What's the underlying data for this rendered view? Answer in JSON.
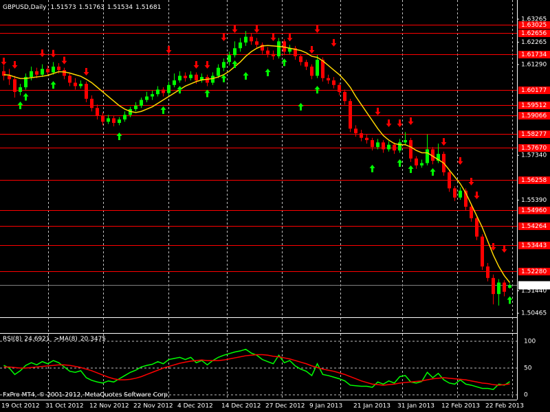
{
  "chart_data": [
    {
      "type": "candlestick",
      "title": "GBPUSD,Daily",
      "categories": [
        "19 Oct 2012",
        null,
        null,
        null,
        null,
        null,
        null,
        null,
        "31 Oct 2012",
        null,
        null,
        null,
        null,
        null,
        null,
        null,
        "12 Nov 2012",
        null,
        null,
        null,
        null,
        null,
        null,
        null,
        "22 Nov 2012",
        null,
        null,
        null,
        null,
        null,
        null,
        null,
        "4 Dec 2012",
        null,
        null,
        null,
        null,
        null,
        null,
        null,
        "14 Dec 2012",
        null,
        null,
        null,
        null,
        null,
        null,
        null,
        "27 Dec 2012",
        null,
        null,
        null,
        null,
        null,
        null,
        null,
        "9 Jan 2013",
        null,
        null,
        null,
        null,
        null,
        null,
        null,
        "21 Jan 2013",
        null,
        null,
        null,
        null,
        null,
        null,
        null,
        "31 Jan 2013",
        null,
        null,
        null,
        null,
        null,
        null,
        null,
        "12 Feb 2013",
        null,
        null,
        null,
        null,
        null,
        null,
        null,
        "22 Feb 2013",
        null,
        null,
        null,
        null
      ],
      "ohlc": [
        [
          1.61,
          1.6125,
          1.606,
          1.608
        ],
        [
          1.608,
          1.611,
          1.604,
          1.6065
        ],
        [
          1.6065,
          1.608,
          1.5985,
          1.601
        ],
        [
          1.601,
          1.6045,
          1.5995,
          1.603
        ],
        [
          1.603,
          1.609,
          1.602,
          1.6075
        ],
        [
          1.6075,
          1.612,
          1.606,
          1.61
        ],
        [
          1.61,
          1.6115,
          1.607,
          1.6085
        ],
        [
          1.6085,
          1.613,
          1.6075,
          1.611
        ],
        [
          1.611,
          1.6125,
          1.608,
          1.6095
        ],
        [
          1.6095,
          1.614,
          1.6085,
          1.612
        ],
        [
          1.612,
          1.6135,
          1.609,
          1.6105
        ],
        [
          1.6105,
          1.6115,
          1.6065,
          1.608
        ],
        [
          1.608,
          1.609,
          1.6035,
          1.605
        ],
        [
          1.605,
          1.607,
          1.602,
          1.6035
        ],
        [
          1.6035,
          1.606,
          1.6025,
          1.6045
        ],
        [
          1.6045,
          1.6055,
          1.5965,
          1.598
        ],
        [
          1.598,
          1.5995,
          1.5925,
          1.594
        ],
        [
          1.594,
          1.5955,
          1.589,
          1.5905
        ],
        [
          1.5905,
          1.592,
          1.5865,
          1.588
        ],
        [
          1.588,
          1.591,
          1.587,
          1.5895
        ],
        [
          1.5895,
          1.5905,
          1.586,
          1.5875
        ],
        [
          1.5875,
          1.59,
          1.5865,
          1.589
        ],
        [
          1.589,
          1.5925,
          1.588,
          1.591
        ],
        [
          1.591,
          1.5945,
          1.59,
          1.5935
        ],
        [
          1.5935,
          1.5965,
          1.5925,
          1.595
        ],
        [
          1.595,
          1.5985,
          1.594,
          1.5975
        ],
        [
          1.5975,
          1.601,
          1.5965,
          1.599
        ],
        [
          1.599,
          1.6015,
          1.5975,
          1.6
        ],
        [
          1.6,
          1.6035,
          1.599,
          1.602
        ],
        [
          1.602,
          1.603,
          1.599,
          1.6005
        ],
        [
          1.6005,
          1.6055,
          1.5995,
          1.604
        ],
        [
          1.604,
          1.609,
          1.603,
          1.606
        ],
        [
          1.606,
          1.61,
          1.605,
          1.608
        ],
        [
          1.608,
          1.6095,
          1.6055,
          1.607
        ],
        [
          1.607,
          1.61,
          1.606,
          1.6085
        ],
        [
          1.6085,
          1.6095,
          1.6045,
          1.606
        ],
        [
          1.606,
          1.609,
          1.605,
          1.6075
        ],
        [
          1.6075,
          1.6085,
          1.6035,
          1.605
        ],
        [
          1.605,
          1.6095,
          1.604,
          1.608
        ],
        [
          1.608,
          1.613,
          1.607,
          1.6115
        ],
        [
          1.6115,
          1.6155,
          1.61,
          1.614
        ],
        [
          1.614,
          1.6185,
          1.6125,
          1.617
        ],
        [
          1.617,
          1.623,
          1.616,
          1.62
        ],
        [
          1.62,
          1.6245,
          1.6185,
          1.6225
        ],
        [
          1.6225,
          1.6275,
          1.621,
          1.625
        ],
        [
          1.625,
          1.6265,
          1.6215,
          1.623
        ],
        [
          1.623,
          1.6245,
          1.62,
          1.6215
        ],
        [
          1.6215,
          1.6225,
          1.6175,
          1.619
        ],
        [
          1.619,
          1.6205,
          1.616,
          1.6175
        ],
        [
          1.6175,
          1.619,
          1.615,
          1.6165
        ],
        [
          1.6165,
          1.6245,
          1.6155,
          1.623
        ],
        [
          1.623,
          1.624,
          1.617,
          1.6185
        ],
        [
          1.6185,
          1.6215,
          1.6175,
          1.62
        ],
        [
          1.62,
          1.621,
          1.615,
          1.6165
        ],
        [
          1.6165,
          1.6175,
          1.6125,
          1.614
        ],
        [
          1.614,
          1.615,
          1.6105,
          1.612
        ],
        [
          1.612,
          1.613,
          1.6065,
          1.608
        ],
        [
          1.608,
          1.617,
          1.607,
          1.615
        ],
        [
          1.615,
          1.616,
          1.6055,
          1.607
        ],
        [
          1.607,
          1.6085,
          1.6045,
          1.606
        ],
        [
          1.606,
          1.6075,
          1.6025,
          1.604
        ],
        [
          1.604,
          1.605,
          1.5995,
          1.601
        ],
        [
          1.601,
          1.602,
          1.5955,
          1.597
        ],
        [
          1.597,
          1.598,
          1.5835,
          1.585
        ],
        [
          1.585,
          1.5865,
          1.5815,
          1.583
        ],
        [
          1.583,
          1.5845,
          1.5795,
          1.581
        ],
        [
          1.581,
          1.5825,
          1.5785,
          1.58
        ],
        [
          1.58,
          1.581,
          1.5755,
          1.577
        ],
        [
          1.577,
          1.5805,
          1.576,
          1.579
        ],
        [
          1.579,
          1.58,
          1.5745,
          1.576
        ],
        [
          1.576,
          1.5795,
          1.575,
          1.578
        ],
        [
          1.578,
          1.579,
          1.574,
          1.5755
        ],
        [
          1.5755,
          1.5805,
          1.5745,
          1.579
        ],
        [
          1.579,
          1.5835,
          1.578,
          1.58
        ],
        [
          1.58,
          1.581,
          1.5705,
          1.572
        ],
        [
          1.572,
          1.573,
          1.5675,
          1.569
        ],
        [
          1.569,
          1.5715,
          1.568,
          1.57
        ],
        [
          1.57,
          1.5825,
          1.569,
          1.576
        ],
        [
          1.576,
          1.577,
          1.5695,
          1.571
        ],
        [
          1.571,
          1.5785,
          1.57,
          1.574
        ],
        [
          1.574,
          1.575,
          1.5645,
          1.566
        ],
        [
          1.566,
          1.567,
          1.5575,
          1.559
        ],
        [
          1.559,
          1.56,
          1.5535,
          1.555
        ],
        [
          1.555,
          1.5595,
          1.554,
          1.558
        ],
        [
          1.558,
          1.559,
          1.5495,
          1.551
        ],
        [
          1.551,
          1.552,
          1.5445,
          1.546
        ],
        [
          1.546,
          1.547,
          1.5365,
          1.538
        ],
        [
          1.538,
          1.539,
          1.5235,
          1.525
        ],
        [
          1.525,
          1.5265,
          1.5185,
          1.52
        ],
        [
          1.52,
          1.5215,
          1.5085,
          1.513
        ],
        [
          1.513,
          1.5195,
          1.508,
          1.518
        ],
        [
          1.518,
          1.519,
          1.512,
          1.514
        ],
        [
          1.51573,
          1.51763,
          1.51534,
          1.51681
        ]
      ],
      "up_color": "#00ff00",
      "down_color": "#ff0000",
      "ma": {
        "color": "#ffd700",
        "values": [
          1.6085,
          1.6083,
          1.6075,
          1.6068,
          1.6068,
          1.6072,
          1.6075,
          1.6078,
          1.6082,
          1.609,
          1.6098,
          1.6097,
          1.6092,
          1.6085,
          1.6078,
          1.6065,
          1.605,
          1.603,
          1.601,
          1.599,
          1.597,
          1.595,
          1.5935,
          1.5925,
          1.592,
          1.5925,
          1.5935,
          1.5945,
          1.596,
          1.5975,
          1.599,
          1.6005,
          1.602,
          1.6035,
          1.6045,
          1.6055,
          1.6062,
          1.6065,
          1.6068,
          1.6075,
          1.6085,
          1.61,
          1.612,
          1.614,
          1.6165,
          1.6185,
          1.62,
          1.621,
          1.6212,
          1.621,
          1.6208,
          1.6205,
          1.62,
          1.6195,
          1.619,
          1.618,
          1.6165,
          1.616,
          1.6145,
          1.6125,
          1.6105,
          1.6085,
          1.606,
          1.603,
          1.599,
          1.5955,
          1.592,
          1.5885,
          1.585,
          1.582,
          1.58,
          1.5785,
          1.578,
          1.578,
          1.577,
          1.5755,
          1.5745,
          1.5745,
          1.573,
          1.5715,
          1.57,
          1.567,
          1.564,
          1.561,
          1.557,
          1.552,
          1.547,
          1.542,
          1.536,
          1.53,
          1.525,
          1.521,
          1.518
        ]
      },
      "ylim": [
        1.5029,
        1.6404
      ],
      "yticks": [
        1.63265,
        1.62265,
        {
          "value": 1.6129,
          "label": "1.61290"
        },
        {
          "value": 1.5734,
          "label": "1.57340"
        },
        {
          "value": 1.5539,
          "label": "1.55390"
        },
        {
          "value": 1.5144,
          "label": "1.51440"
        },
        1.50465
      ],
      "levels": {
        "color": "#ff0000",
        "values": [
          1.63025,
          1.62656,
          1.61734,
          1.60177,
          1.59512,
          1.59066,
          1.58277,
          {
            "value": 1.5767,
            "label": "1.57670"
          },
          1.56258,
          {
            "value": 1.5496,
            "label": "1.54960"
          },
          1.54264,
          1.53443,
          {
            "value": 1.5228,
            "label": "1.52280"
          }
        ]
      },
      "current_price": 1.51681,
      "down_arrows": {
        "color": "#ff0000",
        "x": [
          0,
          2,
          7,
          9,
          11,
          15,
          30,
          35,
          37,
          40,
          42,
          46,
          49,
          52,
          56,
          57,
          60,
          68,
          70,
          72,
          74,
          80,
          83,
          85,
          86,
          89,
          91
        ],
        "values": [
          1.6126,
          1.6111,
          1.6162,
          1.616,
          1.613,
          1.6081,
          1.6177,
          1.6111,
          1.6111,
          1.6231,
          1.6267,
          1.6267,
          1.6231,
          1.623,
          1.6177,
          1.6267,
          1.6207,
          1.5908,
          1.5857,
          1.5857,
          1.5866,
          1.5776,
          1.5693,
          1.5603,
          1.5543,
          1.5319,
          1.531
        ]
      },
      "up_arrows": {
        "color": "#00ff00",
        "x": [
          3,
          4,
          9,
          21,
          29,
          32,
          37,
          40,
          42,
          44,
          48,
          51,
          54,
          57,
          67,
          72,
          74,
          78,
          92
        ],
        "values": [
          1.5968,
          1.6005,
          1.6057,
          1.5833,
          1.5947,
          1.6036,
          1.602,
          1.6085,
          1.6147,
          1.6096,
          1.6111,
          1.6155,
          1.5962,
          1.6036,
          1.5693,
          1.5717,
          1.569,
          1.5678,
          1.512
        ]
      }
    },
    {
      "type": "line",
      "series": [
        {
          "name": "RSI(8)",
          "color": "#00ff00",
          "values": [
            55,
            50,
            38,
            45,
            55,
            60,
            56,
            62,
            58,
            64,
            60,
            52,
            44,
            42,
            45,
            32,
            27,
            24,
            22,
            26,
            24,
            30,
            36,
            42,
            46,
            52,
            55,
            57,
            62,
            58,
            66,
            68,
            70,
            66,
            70,
            60,
            64,
            56,
            64,
            70,
            74,
            77,
            80,
            82,
            85,
            78,
            74,
            66,
            62,
            58,
            74,
            60,
            64,
            54,
            48,
            44,
            36,
            58,
            38,
            36,
            33,
            30,
            26,
            18,
            17,
            16,
            16,
            14,
            24,
            20,
            26,
            22,
            34,
            36,
            24,
            22,
            25,
            42,
            32,
            40,
            28,
            22,
            20,
            28,
            20,
            18,
            15,
            12,
            12,
            10,
            20,
            18,
            24.6921
          ]
        },
        {
          "name": ">MA(8)",
          "color": "#ff0000",
          "values": [
            52,
            52,
            51,
            50,
            50,
            51,
            52,
            53,
            54,
            55,
            56,
            56,
            55,
            53,
            51,
            48,
            45,
            41,
            37,
            33,
            30,
            28,
            28,
            29,
            31,
            34,
            38,
            42,
            46,
            50,
            53,
            56,
            59,
            61,
            63,
            64,
            65,
            64,
            64,
            64,
            65,
            67,
            69,
            71,
            73,
            74,
            75,
            75,
            74,
            72,
            71,
            69,
            67,
            64,
            61,
            58,
            54,
            51,
            48,
            46,
            44,
            41,
            38,
            34,
            30,
            26,
            23,
            20,
            19,
            18,
            19,
            20,
            22,
            23,
            24,
            25,
            26,
            28,
            30,
            31,
            32,
            31,
            30,
            29,
            28,
            26,
            24,
            22,
            21,
            19,
            18,
            19,
            20.3475
          ]
        }
      ],
      "ylim": [
        0,
        100
      ],
      "yticks": [
        100,
        50,
        0
      ],
      "grid": true
    }
  ],
  "footer": "FxPro MT4, © 2001-2012, MetaQuotes Software Corp."
}
